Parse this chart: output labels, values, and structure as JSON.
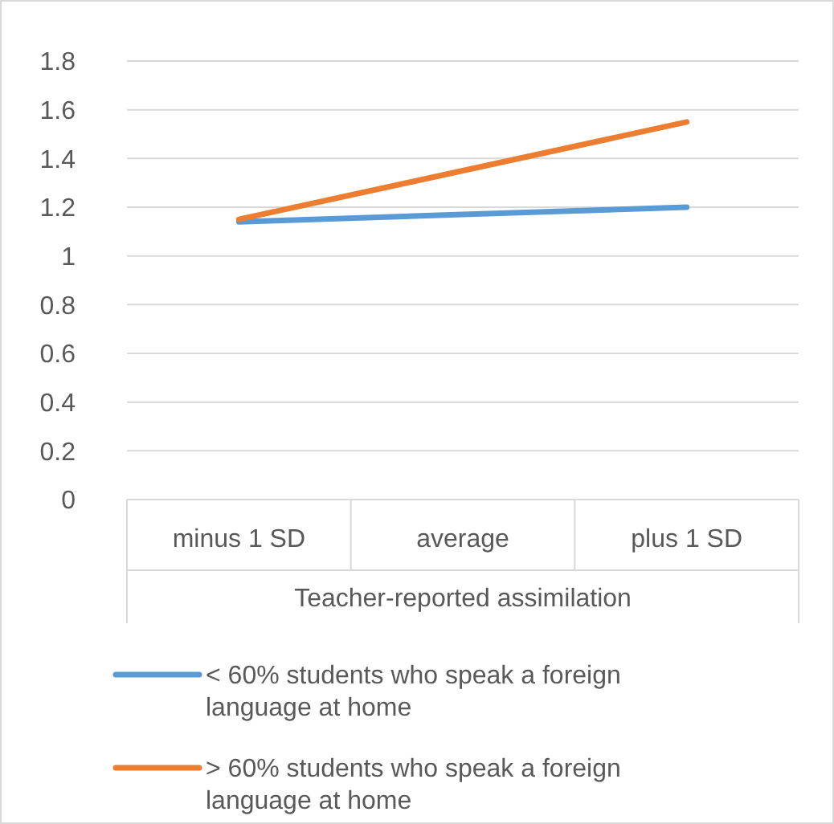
{
  "chart_data": {
    "type": "line",
    "xlabel": "Teacher-reported assimilation",
    "categories": [
      "minus 1 SD",
      "average",
      "plus 1 SD"
    ],
    "series": [
      {
        "name": "< 60% students who speak a foreign language at home",
        "color": "#5b9bd5",
        "values": [
          1.14,
          1.17,
          1.2
        ]
      },
      {
        "name": "> 60% students who speak a foreign language at home",
        "color": "#ed7d31",
        "values": [
          1.15,
          1.35,
          1.55
        ]
      }
    ],
    "ylim": [
      0,
      1.8
    ],
    "yticks": [
      0,
      0.2,
      0.4,
      0.6,
      0.8,
      1,
      1.2,
      1.4,
      1.6,
      1.8
    ],
    "grid": "y",
    "legend": "bottom",
    "marker": "none"
  }
}
